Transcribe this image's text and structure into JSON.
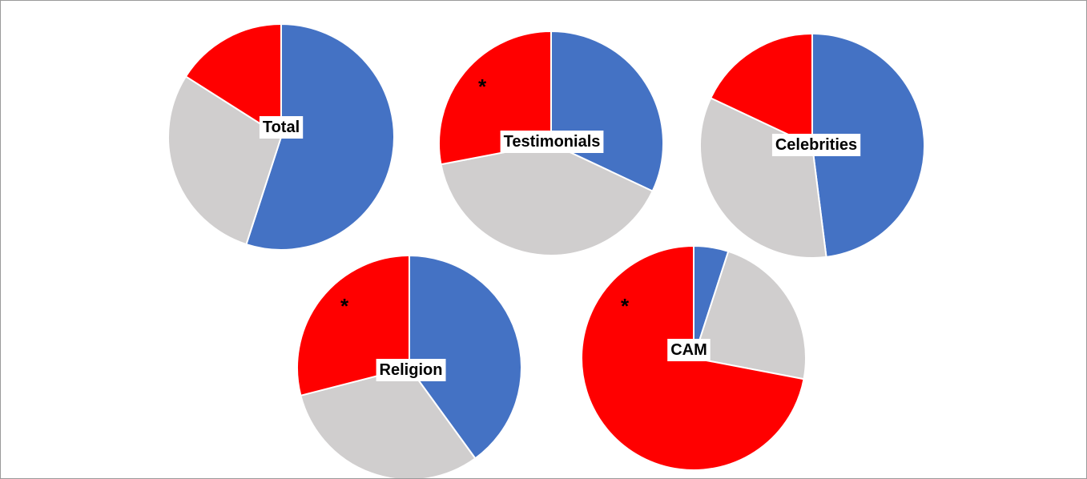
{
  "colors": {
    "series_blue": "#4472C4",
    "series_gray": "#D0CECE",
    "series_red": "#FF0000",
    "slice_border": "#FFFFFF",
    "label_background": "#FFFFFF",
    "frame_border": "#9A9A9A"
  },
  "chart_data": [
    {
      "type": "pie",
      "label": "Total",
      "significance_marker": "",
      "slices": [
        {
          "color": "series_blue",
          "value": 55
        },
        {
          "color": "series_gray",
          "value": 29
        },
        {
          "color": "series_red",
          "value": 16
        }
      ]
    },
    {
      "type": "pie",
      "label": "Testimonials",
      "significance_marker": "*",
      "slices": [
        {
          "color": "series_blue",
          "value": 32
        },
        {
          "color": "series_gray",
          "value": 40
        },
        {
          "color": "series_red",
          "value": 28
        }
      ]
    },
    {
      "type": "pie",
      "label": "Celebrities",
      "significance_marker": "",
      "slices": [
        {
          "color": "series_blue",
          "value": 48
        },
        {
          "color": "series_gray",
          "value": 34
        },
        {
          "color": "series_red",
          "value": 18
        }
      ]
    },
    {
      "type": "pie",
      "label": "Religion",
      "significance_marker": "*",
      "slices": [
        {
          "color": "series_blue",
          "value": 40
        },
        {
          "color": "series_gray",
          "value": 31
        },
        {
          "color": "series_red",
          "value": 29
        }
      ]
    },
    {
      "type": "pie",
      "label": "CAM",
      "significance_marker": "*",
      "slices": [
        {
          "color": "series_blue",
          "value": 5
        },
        {
          "color": "series_gray",
          "value": 23
        },
        {
          "color": "series_red",
          "value": 72
        }
      ]
    }
  ]
}
